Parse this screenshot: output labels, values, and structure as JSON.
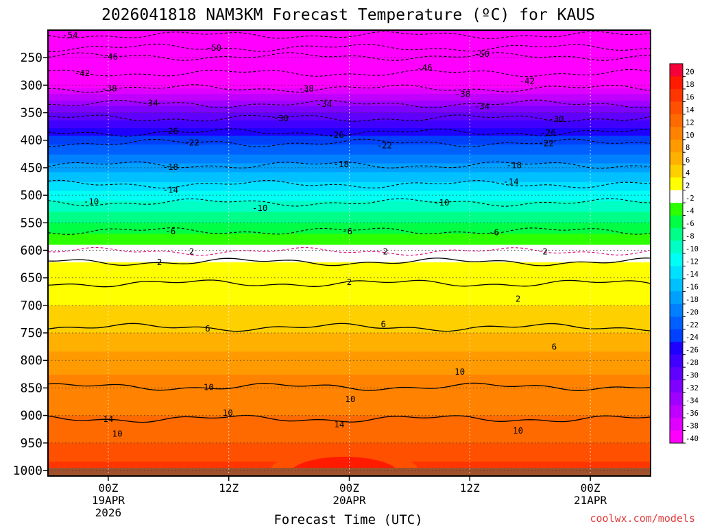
{
  "chart_data": {
    "type": "time-height contour",
    "title": "2026041818 NAM3KM Forecast Temperature (ºC) for KAUS",
    "xlabel": "Forecast Time (UTC)",
    "x_ticks": [
      {
        "lines": [
          "00Z",
          "19APR",
          "2026"
        ],
        "hour": 6
      },
      {
        "lines": [
          "12Z"
        ],
        "hour": 18
      },
      {
        "lines": [
          "00Z",
          "20APR"
        ],
        "hour": 30
      },
      {
        "lines": [
          "12Z"
        ],
        "hour": 42
      },
      {
        "lines": [
          "00Z",
          "21APR"
        ],
        "hour": 54
      }
    ],
    "x_range_hours": [
      0,
      60
    ],
    "y_ticks": [
      250,
      300,
      350,
      400,
      450,
      500,
      550,
      600,
      650,
      700,
      750,
      800,
      850,
      900,
      950,
      1000
    ],
    "y_range_hpa": [
      200,
      1010
    ],
    "colorbar_labels": [
      20,
      18,
      16,
      14,
      12,
      10,
      8,
      6,
      4,
      2,
      -2,
      -4,
      -6,
      -8,
      -10,
      -12,
      -14,
      -16,
      -18,
      -20,
      -22,
      -24,
      -26,
      -28,
      -30,
      -32,
      -34,
      -36,
      -38,
      -40
    ],
    "colorbar_colors": [
      "#f50039",
      "#ff1a00",
      "#ff3500",
      "#ff5000",
      "#ff6a00",
      "#ff8300",
      "#ff9a00",
      "#ffb000",
      "#ffd000",
      "#ffff00",
      "#ffffff",
      "#2cff00",
      "#00ff44",
      "#00ff88",
      "#00ffc4",
      "#00fff4",
      "#00e0ff",
      "#00c0ff",
      "#00a0ff",
      "#0080ff",
      "#0060ff",
      "#0040ff",
      "#1f00ff",
      "#4000ff",
      "#6000ff",
      "#8000ff",
      "#a000ff",
      "#c000ff",
      "#e000ff",
      "#ff00ff"
    ],
    "isotherm_labels": [
      {
        "text": "-54",
        "hour": 2.2,
        "hpa": 209
      },
      {
        "text": "-50",
        "hour": 16.5,
        "hpa": 232
      },
      {
        "text": "-50",
        "hour": 43.2,
        "hpa": 243
      },
      {
        "text": "-46",
        "hour": 6.2,
        "hpa": 248
      },
      {
        "text": "-46",
        "hour": 37.5,
        "hpa": 268
      },
      {
        "text": "-42",
        "hour": 3.4,
        "hpa": 278
      },
      {
        "text": "-42",
        "hour": 47.7,
        "hpa": 292
      },
      {
        "text": "-38",
        "hour": 6.1,
        "hpa": 306
      },
      {
        "text": "-38",
        "hour": 25.7,
        "hpa": 306
      },
      {
        "text": "-38",
        "hour": 41.3,
        "hpa": 316
      },
      {
        "text": "-34",
        "hour": 10.2,
        "hpa": 332
      },
      {
        "text": "-34",
        "hour": 27.5,
        "hpa": 334
      },
      {
        "text": "-34",
        "hour": 43.2,
        "hpa": 338
      },
      {
        "text": "-30",
        "hour": 23.2,
        "hpa": 360
      },
      {
        "text": "-30",
        "hour": 50.6,
        "hpa": 361
      },
      {
        "text": "-26",
        "hour": 12.2,
        "hpa": 383
      },
      {
        "text": "-26",
        "hour": 28.7,
        "hpa": 390
      },
      {
        "text": "-26",
        "hour": 49.8,
        "hpa": 386
      },
      {
        "text": "-22",
        "hour": 14.3,
        "hpa": 404
      },
      {
        "text": "-22",
        "hour": 33.5,
        "hpa": 409
      },
      {
        "text": "-22",
        "hour": 49.6,
        "hpa": 405
      },
      {
        "text": "-18",
        "hour": 12.2,
        "hpa": 448
      },
      {
        "text": "-18",
        "hour": 29.2,
        "hpa": 443
      },
      {
        "text": "-18",
        "hour": 46.4,
        "hpa": 445
      },
      {
        "text": "-14",
        "hour": 12.2,
        "hpa": 490
      },
      {
        "text": "-14",
        "hour": 46.1,
        "hpa": 475
      },
      {
        "text": "-10",
        "hour": 4.3,
        "hpa": 511
      },
      {
        "text": "-10",
        "hour": 21.1,
        "hpa": 523
      },
      {
        "text": "-10",
        "hour": 39.2,
        "hpa": 513
      },
      {
        "text": "-6",
        "hour": 12.2,
        "hpa": 565
      },
      {
        "text": "-6",
        "hour": 29.8,
        "hpa": 565
      },
      {
        "text": "-6",
        "hour": 44.4,
        "hpa": 567
      },
      {
        "text": "2",
        "hour": 14.3,
        "hpa": 602
      },
      {
        "text": "2",
        "hour": 33.6,
        "hpa": 602
      },
      {
        "text": "2",
        "hour": 49.5,
        "hpa": 602
      },
      {
        "text": "2",
        "hour": 11.1,
        "hpa": 621
      },
      {
        "text": "2",
        "hour": 30.0,
        "hpa": 657
      },
      {
        "text": "2",
        "hour": 46.8,
        "hpa": 688
      },
      {
        "text": "6",
        "hour": 15.9,
        "hpa": 742
      },
      {
        "text": "6",
        "hour": 33.4,
        "hpa": 734
      },
      {
        "text": "6",
        "hour": 50.4,
        "hpa": 775
      },
      {
        "text": "10",
        "hour": 16.0,
        "hpa": 848
      },
      {
        "text": "10",
        "hour": 30.1,
        "hpa": 870
      },
      {
        "text": "10",
        "hour": 17.9,
        "hpa": 895
      },
      {
        "text": "10",
        "hour": 41.0,
        "hpa": 820
      },
      {
        "text": "10",
        "hour": 46.8,
        "hpa": 927
      },
      {
        "text": "10",
        "hour": 6.9,
        "hpa": 933
      },
      {
        "text": "14",
        "hour": 6.0,
        "hpa": 906
      },
      {
        "text": "14",
        "hour": 29.0,
        "hpa": 916
      }
    ]
  },
  "credit": "coolwx.com/models"
}
